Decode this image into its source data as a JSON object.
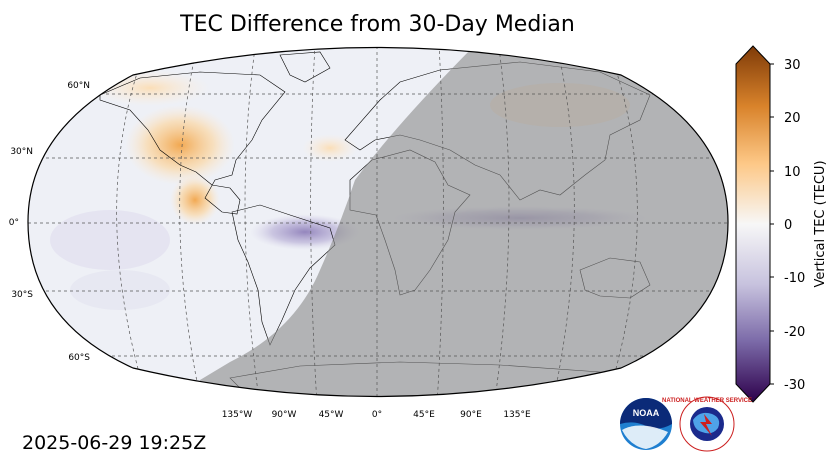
{
  "title": "TEC Difference from 30-Day Median",
  "timestamp": "2025-06-29 19:25Z",
  "map": {
    "projection": "Robinson",
    "lat_labels": [
      "60°N",
      "30°N",
      "0°",
      "30°S",
      "60°S"
    ],
    "lon_labels": [
      "135°W",
      "90°W",
      "45°W",
      "0°",
      "45°E",
      "90°E",
      "135°E"
    ],
    "gridlines": "dashed",
    "night_shading": "gray overlay over Africa, Europe, Asia, Oceania",
    "ocean_color": "#eef0f6",
    "positive_anomalies": [
      "North America",
      "Central America",
      "North Atlantic"
    ],
    "negative_anomalies": [
      "Equatorial South America",
      "Equatorial Atlantic",
      "Equatorial Indian Ocean"
    ]
  },
  "colorbar": {
    "label": "Vertical TEC (TECU)",
    "min": -30,
    "max": 30,
    "ticks": [
      "30",
      "20",
      "10",
      "0",
      "-10",
      "-20",
      "-30"
    ],
    "color_high": "#7f3b08",
    "color_mid": "#f7f7f7",
    "color_low": "#2d004b"
  },
  "logos": {
    "noaa": "NOAA",
    "nws": "NATIONAL WEATHER SERVICE"
  }
}
